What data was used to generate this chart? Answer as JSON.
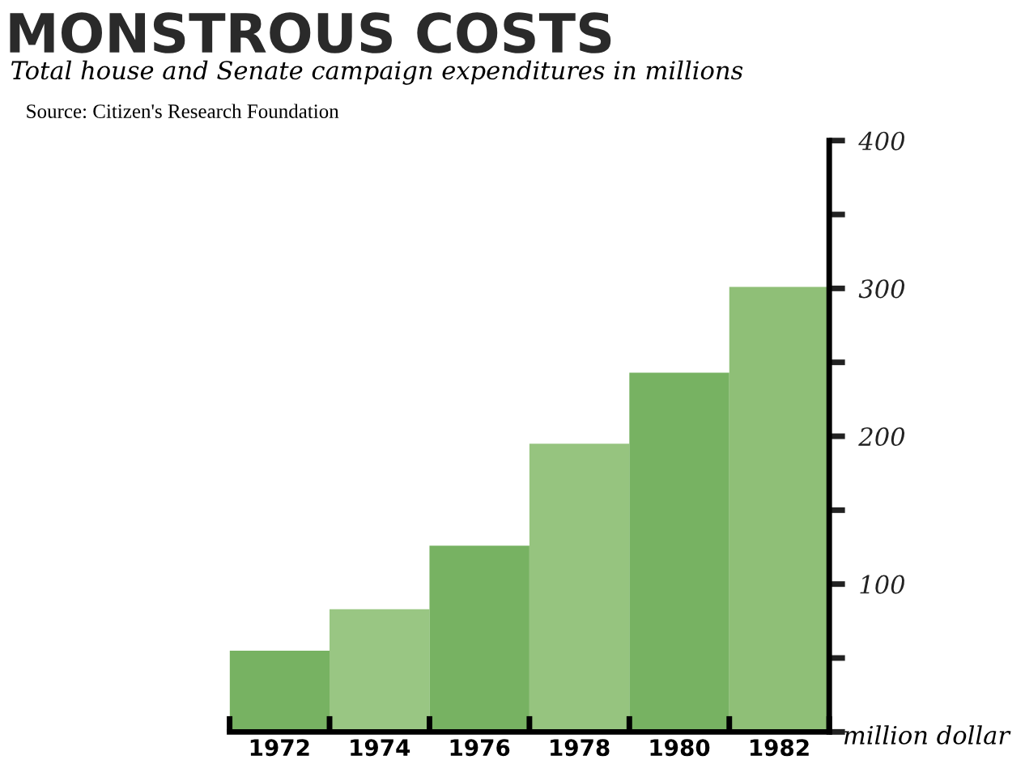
{
  "chart_data": {
    "type": "bar",
    "title": "MONSTROUS COSTS",
    "subtitle": "Total house and Senate campaign expenditures in millions",
    "annotations": [
      "Source: Citizen's Research Foundation"
    ],
    "ylabel": "million dollar",
    "categories": [
      "1972",
      "1974",
      "1976",
      "1978",
      "1980",
      "1982"
    ],
    "values": [
      55,
      83,
      126,
      195,
      243,
      301
    ],
    "colors": [
      "#77b262",
      "#99c683",
      "#77b262",
      "#96c47f",
      "#77b262",
      "#8fbf77"
    ],
    "ylim": [
      0,
      400
    ],
    "yticks": [
      {
        "value": 0,
        "label": null
      },
      {
        "value": 50,
        "label": null
      },
      100,
      {
        "value": 150,
        "label": null
      },
      200,
      {
        "value": 250,
        "label": null
      },
      300,
      {
        "value": 350,
        "label": null
      },
      400
    ],
    "grid": false
  }
}
